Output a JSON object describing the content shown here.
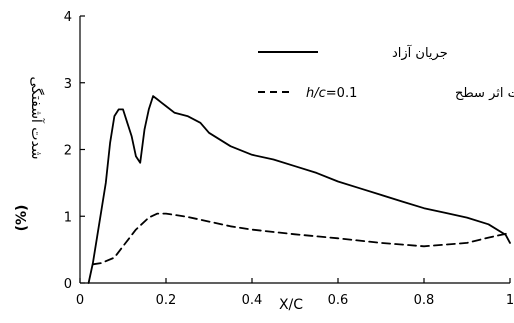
{
  "chart_data": {
    "type": "line",
    "xlabel": "X/C",
    "ylabel_main": "شدت آشفتگی",
    "ylabel_unit": "(%)",
    "xlim": [
      0,
      1
    ],
    "ylim": [
      0,
      4
    ],
    "x_ticks": [
      "0",
      "0.2",
      "0.4",
      "0.6",
      "0.8",
      "1"
    ],
    "y_ticks": [
      "0",
      "1",
      "2",
      "3",
      "4"
    ],
    "grid": false,
    "legend_position": "top-right",
    "series": [
      {
        "name": "جریان آزاد",
        "style": "solid",
        "x": [
          0.02,
          0.03,
          0.04,
          0.05,
          0.06,
          0.07,
          0.08,
          0.09,
          0.1,
          0.11,
          0.12,
          0.13,
          0.14,
          0.15,
          0.16,
          0.17,
          0.18,
          0.19,
          0.2,
          0.22,
          0.25,
          0.28,
          0.3,
          0.35,
          0.4,
          0.45,
          0.5,
          0.55,
          0.6,
          0.65,
          0.7,
          0.75,
          0.8,
          0.85,
          0.9,
          0.95,
          0.99,
          1.0
        ],
        "y": [
          0.0,
          0.3,
          0.7,
          1.1,
          1.5,
          2.1,
          2.5,
          2.6,
          2.6,
          2.4,
          2.2,
          1.9,
          1.8,
          2.3,
          2.6,
          2.8,
          2.75,
          2.7,
          2.65,
          2.55,
          2.5,
          2.4,
          2.25,
          2.05,
          1.92,
          1.85,
          1.75,
          1.65,
          1.52,
          1.42,
          1.32,
          1.22,
          1.12,
          1.05,
          0.98,
          0.88,
          0.72,
          0.6
        ]
      },
      {
        "name": "تحت اثر سطح",
        "style": "dashed",
        "x": [
          0.03,
          0.05,
          0.08,
          0.1,
          0.13,
          0.16,
          0.18,
          0.2,
          0.25,
          0.3,
          0.35,
          0.4,
          0.5,
          0.6,
          0.7,
          0.8,
          0.9,
          0.95,
          1.0
        ],
        "y": [
          0.28,
          0.3,
          0.38,
          0.55,
          0.8,
          0.98,
          1.04,
          1.04,
          0.99,
          0.92,
          0.85,
          0.8,
          0.73,
          0.67,
          0.6,
          0.55,
          0.6,
          0.68,
          0.75
        ]
      }
    ]
  },
  "legend": {
    "freeflow_label": "جریان آزاد",
    "surface_label": "تحت اثر سطح",
    "param_italic": "h/c",
    "param_value": "=0.1"
  }
}
